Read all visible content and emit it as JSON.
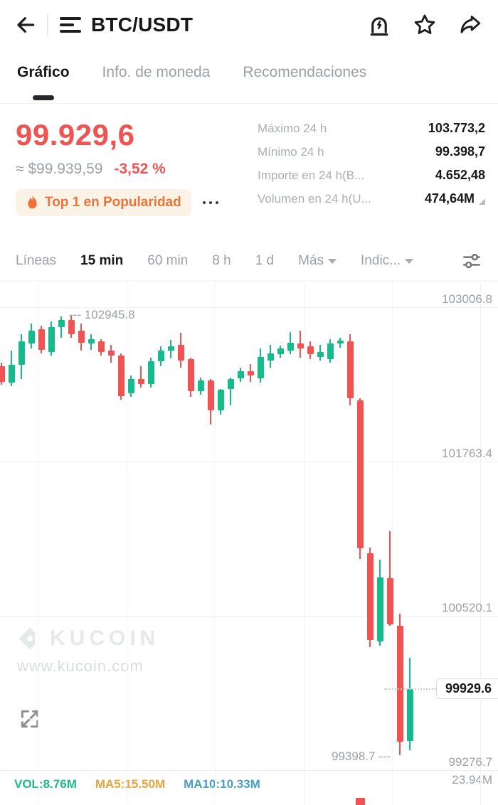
{
  "header": {
    "title": "BTC/USDT",
    "icons": {
      "back": "arrow-left",
      "markets": "list",
      "alert": "price-alert",
      "favorite": "star",
      "share": "share-arrow"
    }
  },
  "tabs": {
    "items": [
      {
        "label": "Gráfico",
        "active": true
      },
      {
        "label": "Info. de moneda",
        "active": false
      },
      {
        "label": "Recomendaciones",
        "active": false
      }
    ]
  },
  "price_panel": {
    "last_price": "99.929,6",
    "approx_fiat": "≈ $99.939,59",
    "change_pct": "-3,52 %",
    "badge_label": "Top 1 en Popularidad",
    "price_color": "#F05452"
  },
  "stats": [
    {
      "label": "Máximo 24 h",
      "value": "103.773,2"
    },
    {
      "label": "Mínimo 24 h",
      "value": "99.398,7"
    },
    {
      "label": "Importe en 24 h(B...",
      "value": "4.652,48"
    },
    {
      "label": "Volumen en 24 h(U...",
      "value": "474,64M"
    }
  ],
  "toolbar": {
    "items": [
      {
        "label": "Líneas",
        "active": false,
        "chevron": false
      },
      {
        "label": "15 min",
        "active": true,
        "chevron": false
      },
      {
        "label": "60 min",
        "active": false,
        "chevron": false
      },
      {
        "label": "8 h",
        "active": false,
        "chevron": false
      },
      {
        "label": "1 d",
        "active": false,
        "chevron": false
      },
      {
        "label": "Más",
        "active": false,
        "chevron": true
      },
      {
        "label": "Indic...",
        "active": false,
        "chevron": true
      }
    ]
  },
  "chart_data": {
    "type": "candlestick",
    "pair": "BTC/USDT",
    "interval": "15 min",
    "colors": {
      "up": "#16BA8C",
      "down": "#F05452"
    },
    "y_gridlines": [
      {
        "price": 103006.8,
        "label": "103006.8"
      },
      {
        "price": 101763.4,
        "label": "101763.4"
      },
      {
        "price": 100520.1,
        "label": "100520.1"
      },
      {
        "price": 99276.7,
        "label": "99276.7"
      }
    ],
    "high_annotation": {
      "price": 102945.8,
      "label": "--- 102945.8"
    },
    "low_annotation": {
      "price": 99398.7,
      "label": "99398.7 ---"
    },
    "current_price": {
      "value": 99929.6,
      "label": "99929.6"
    },
    "candles": [
      [
        102530,
        102560,
        102380,
        102405
      ],
      [
        102400,
        102660,
        102370,
        102545
      ],
      [
        102545,
        102790,
        102430,
        102730
      ],
      [
        102714,
        102875,
        102674,
        102818
      ],
      [
        102829,
        102858,
        102634,
        102663
      ],
      [
        102646,
        102892,
        102617,
        102846
      ],
      [
        102846,
        102932,
        102760,
        102903
      ],
      [
        102903,
        102945.8,
        102758,
        102790
      ],
      [
        102818,
        102875,
        102657,
        102720
      ],
      [
        102714,
        102789,
        102663,
        102749
      ],
      [
        102732,
        102749,
        102617,
        102646
      ],
      [
        102657,
        102703,
        102560,
        102617
      ],
      [
        102617,
        102634,
        102262,
        102291
      ],
      [
        102313,
        102457,
        102285,
        102428
      ],
      [
        102428,
        102531,
        102360,
        102388
      ],
      [
        102388,
        102600,
        102360,
        102571
      ],
      [
        102571,
        102690,
        102530,
        102660
      ],
      [
        102660,
        102745,
        102595,
        102692
      ],
      [
        102703,
        102800,
        102520,
        102577
      ],
      [
        102589,
        102600,
        102285,
        102331
      ],
      [
        102331,
        102440,
        102300,
        102417
      ],
      [
        102417,
        102428,
        102062,
        102176
      ],
      [
        102176,
        102350,
        102141,
        102342
      ],
      [
        102347,
        102440,
        102216,
        102428
      ],
      [
        102434,
        102520,
        102405,
        102491
      ],
      [
        102491,
        102548,
        102405,
        102457
      ],
      [
        102434,
        102674,
        102400,
        102606
      ],
      [
        102577,
        102703,
        102520,
        102634
      ],
      [
        102629,
        102700,
        102600,
        102674
      ],
      [
        102657,
        102806,
        102630,
        102720
      ],
      [
        102714,
        102818,
        102600,
        102674
      ],
      [
        102692,
        102732,
        102589,
        102629
      ],
      [
        102606,
        102703,
        102577,
        102646
      ],
      [
        102589,
        102750,
        102560,
        102715
      ],
      [
        102715,
        102760,
        102680,
        102740
      ],
      [
        102732,
        102789,
        102217,
        102274
      ],
      [
        102257,
        102274,
        100979,
        101065
      ],
      [
        101024,
        101070,
        100268,
        100325
      ],
      [
        100313,
        100972,
        100279,
        100829
      ],
      [
        100823,
        101201,
        100440,
        100451
      ],
      [
        100440,
        100537,
        99398.7,
        99506
      ],
      [
        99512,
        100182,
        99437,
        99929.6
      ]
    ],
    "volume": {
      "labels": [
        {
          "text": "VOL:8.76M",
          "color": "#1FB98B"
        },
        {
          "text": "MA5:15.50M",
          "color": "#E8A33D"
        },
        {
          "text": "MA10:10.33M",
          "color": "#4A9FC4"
        }
      ],
      "scale_label": "23.94M",
      "visible_bar": {
        "candle_index": 36,
        "color": "#F05452"
      }
    }
  },
  "watermark": {
    "brand": "KUCOIN",
    "url": "www.kucoin.com"
  }
}
